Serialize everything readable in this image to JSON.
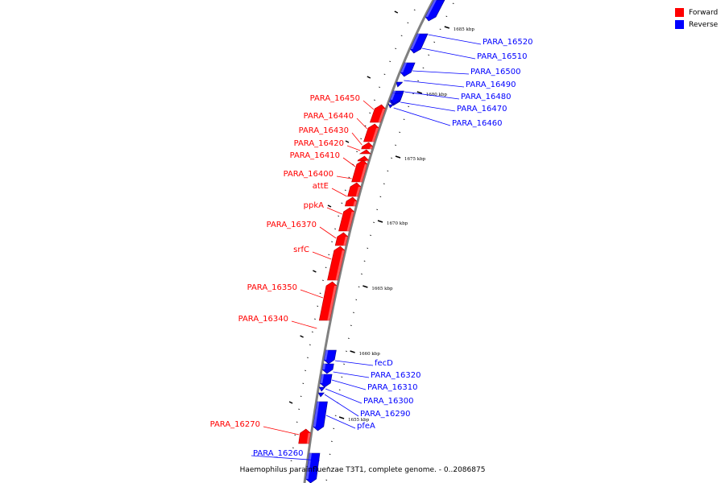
{
  "genome_title": "Haemophilus parainfluenzae T3T1, complete genome. - 0..2086875",
  "legend": [
    {
      "label": "Forward",
      "color": "#ff0000"
    },
    {
      "label": "Reverse",
      "color": "#0000ff"
    }
  ],
  "colors": {
    "forward": "#ff0000",
    "reverse": "#0000ff",
    "backbone": "#808080"
  },
  "ticks": [
    {
      "label": "1685 kbp"
    },
    {
      "label": "1680 kbp"
    },
    {
      "label": "1675 kbp"
    },
    {
      "label": "1670 kbp"
    },
    {
      "label": "1665 kbp"
    },
    {
      "label": "1660 kbp"
    },
    {
      "label": "1655 kbp"
    }
  ],
  "genes": [
    {
      "name": "PARA_16520",
      "strand": "reverse"
    },
    {
      "name": "PARA_16510",
      "strand": "reverse"
    },
    {
      "name": "PARA_16500",
      "strand": "reverse"
    },
    {
      "name": "PARA_16490",
      "strand": "reverse"
    },
    {
      "name": "PARA_16480",
      "strand": "reverse"
    },
    {
      "name": "PARA_16470",
      "strand": "reverse"
    },
    {
      "name": "PARA_16460",
      "strand": "reverse"
    },
    {
      "name": "PARA_16450",
      "strand": "forward"
    },
    {
      "name": "PARA_16440",
      "strand": "forward"
    },
    {
      "name": "PARA_16430",
      "strand": "forward"
    },
    {
      "name": "PARA_16420",
      "strand": "forward"
    },
    {
      "name": "PARA_16410",
      "strand": "forward"
    },
    {
      "name": "PARA_16400",
      "strand": "forward"
    },
    {
      "name": "attE",
      "strand": "forward"
    },
    {
      "name": "ppkA",
      "strand": "forward"
    },
    {
      "name": "PARA_16370",
      "strand": "forward"
    },
    {
      "name": "srfC",
      "strand": "forward"
    },
    {
      "name": "PARA_16350",
      "strand": "forward"
    },
    {
      "name": "PARA_16340",
      "strand": "forward"
    },
    {
      "name": "fecD",
      "strand": "reverse"
    },
    {
      "name": "PARA_16320",
      "strand": "reverse"
    },
    {
      "name": "PARA_16310",
      "strand": "reverse"
    },
    {
      "name": "PARA_16300",
      "strand": "reverse"
    },
    {
      "name": "PARA_16290",
      "strand": "reverse"
    },
    {
      "name": "pfeA",
      "strand": "reverse"
    },
    {
      "name": "PARA_16270",
      "strand": "forward"
    },
    {
      "name": "PARA_16260",
      "strand": "reverse"
    }
  ]
}
